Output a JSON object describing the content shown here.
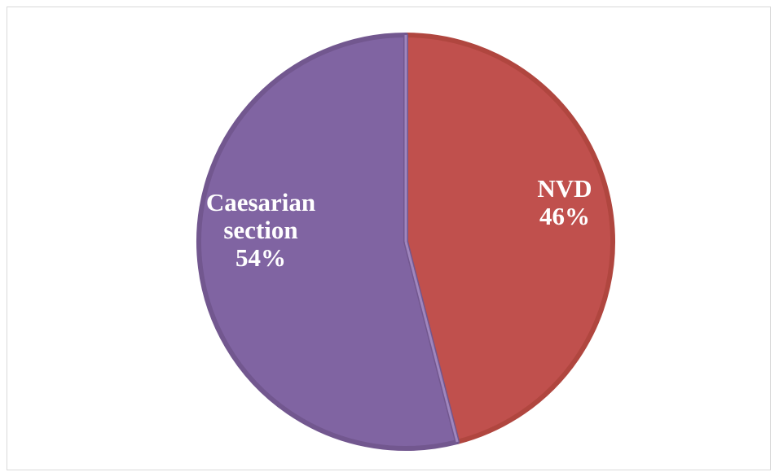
{
  "chart_data": {
    "type": "pie",
    "title": "",
    "slices": [
      {
        "label_lines": [
          "NVD"
        ],
        "percent_label": "46%",
        "value": 46,
        "color": "#c0504d",
        "edge_color": "#b0463f"
      },
      {
        "label_lines": [
          "Caesarian",
          "section"
        ],
        "percent_label": "54%",
        "value": 54,
        "color": "#8064a2",
        "edge_color": "#72578f"
      }
    ],
    "start_angle_deg": 0,
    "direction": "clockwise",
    "legend": "none",
    "data_labels": "inside"
  }
}
